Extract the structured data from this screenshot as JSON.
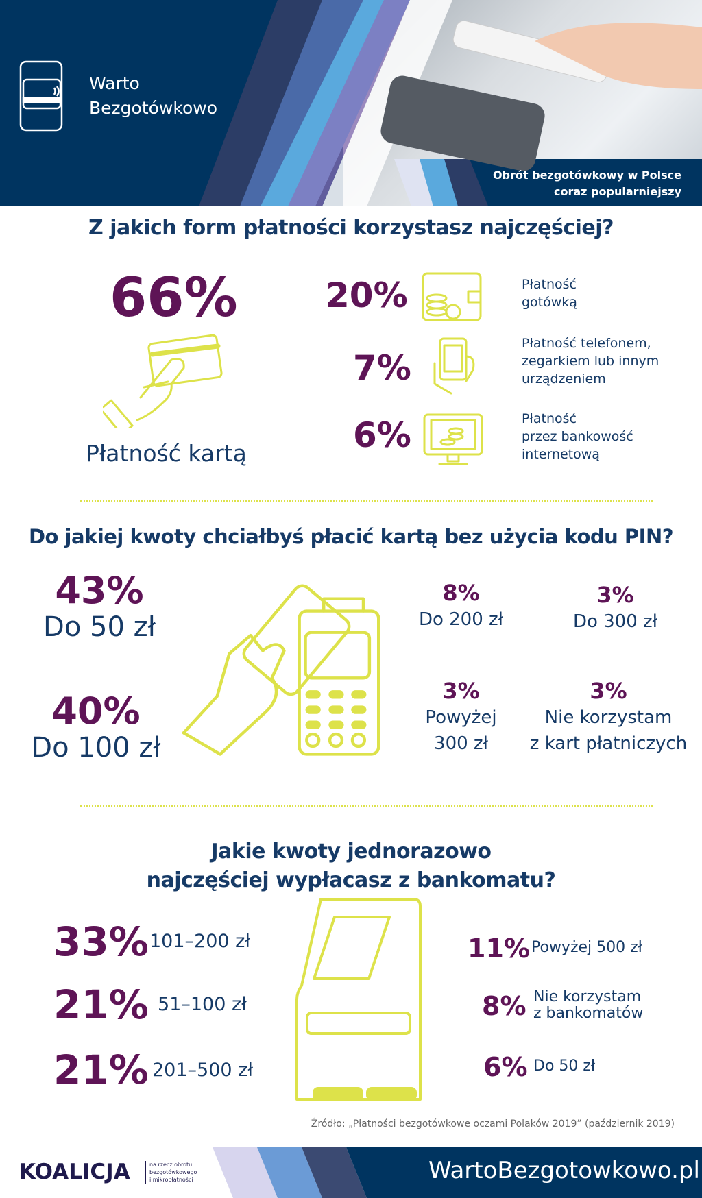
{
  "header": {
    "brand_line1": "Warto",
    "brand_line2": "Bezgotówkowo",
    "tagline_line1": "Obrót bezgotówkowy w Polsce",
    "tagline_line2": "coraz popularniejszy",
    "colors": {
      "navy": "#003460",
      "accent_blue": "#5aa9dd",
      "purple": "#8a6fb8"
    }
  },
  "section1": {
    "title": "Z jakich form płatności korzystasz najczęściej?",
    "main": {
      "percent": "66%",
      "label": "Płatność kartą",
      "icon": "hand-card-icon"
    },
    "items": [
      {
        "percent": "20%",
        "icon": "wallet-coins-icon",
        "label_lines": [
          "Płatność",
          "gotówką"
        ]
      },
      {
        "percent": "7%",
        "icon": "hand-phone-icon",
        "label_lines": [
          "Płatność telefonem,",
          "zegarkiem lub innym",
          "urządzeniem"
        ]
      },
      {
        "percent": "6%",
        "icon": "monitor-coins-icon",
        "label_lines": [
          "Płatność",
          "przez bankowość",
          "internetową"
        ]
      }
    ]
  },
  "section2": {
    "title": "Do jakiej kwoty chciałbyś płacić kartą bez użycia kodu PIN?",
    "left": [
      {
        "percent": "43%",
        "label": "Do 50 zł"
      },
      {
        "percent": "40%",
        "label": "Do 100 zł"
      }
    ],
    "right": [
      {
        "percent": "8%",
        "label_lines": [
          "Do 200 zł"
        ]
      },
      {
        "percent": "3%",
        "label_lines": [
          "Do 300 zł"
        ]
      },
      {
        "percent": "3%",
        "label_lines": [
          "Powyżej",
          "300 zł"
        ]
      },
      {
        "percent": "3%",
        "label_lines": [
          "Nie korzystam",
          "z kart płatniczych"
        ]
      }
    ]
  },
  "section3": {
    "title_line1": "Jakie kwoty jednorazowo",
    "title_line2": "najczęściej wypłacasz z bankomatu?",
    "left": [
      {
        "percent": "33%",
        "label": "101–200 zł"
      },
      {
        "percent": "21%",
        "label": "51–100 zł"
      },
      {
        "percent": "21%",
        "label": "201–500 zł"
      }
    ],
    "right": [
      {
        "percent": "11%",
        "label_lines": [
          "Powyżej 500 zł"
        ]
      },
      {
        "percent": "8%",
        "label_lines": [
          "Nie korzystam",
          "z bankomatów"
        ]
      },
      {
        "percent": "6%",
        "label_lines": [
          "Do 50 zł"
        ]
      }
    ]
  },
  "source": "Źródło: „Płatności bezgotówkowe oczami Polaków 2019” (październik 2019)",
  "footer": {
    "logo": "KOALICJA",
    "logo_sub_lines": [
      "na rzecz obrotu",
      "bezgotówkowego",
      "i mikropłatności"
    ],
    "url": "WartoBezgotowkowo.pl"
  },
  "colors": {
    "percent": "#5e1456",
    "text": "#163a66",
    "icon": "#dde24a"
  }
}
